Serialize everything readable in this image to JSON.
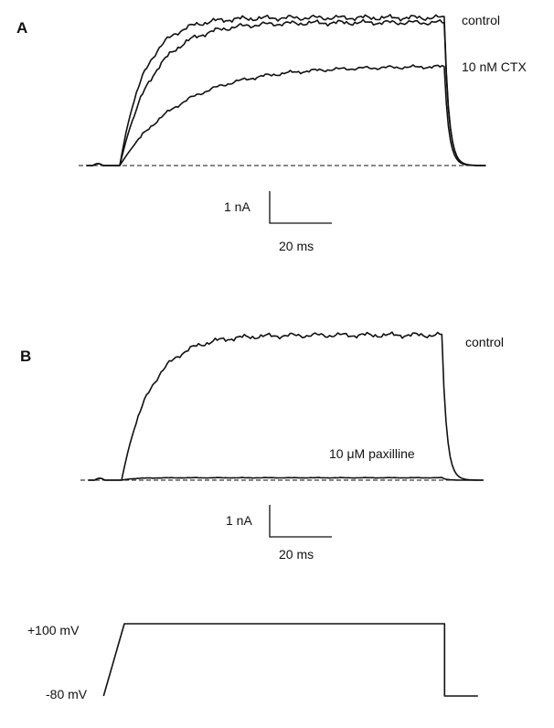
{
  "panels": {
    "a": {
      "letter": "A",
      "labels": {
        "control": "control",
        "toxin": "10 nM CTX"
      },
      "scale": {
        "current": "1 nA",
        "time": "20 ms"
      }
    },
    "b": {
      "letter": "B",
      "labels": {
        "control": "control",
        "toxin": "10 μM paxilline"
      },
      "scale": {
        "current": "1 nA",
        "time": "20 ms"
      }
    }
  },
  "protocol": {
    "high": "+100 mV",
    "low": "-80 mV"
  },
  "chart_data": [
    {
      "type": "line",
      "title": "A",
      "x_unit": "ms",
      "y_unit": "nA",
      "baseline_nA": 0,
      "step_on_ms": 0,
      "step_off_ms": 78,
      "series": [
        {
          "name": "control",
          "peak_nA": 3.05,
          "tau_ms": 6
        },
        {
          "name": "",
          "peak_nA": 2.95,
          "tau_ms": 8
        },
        {
          "name": "10 nM CTX",
          "peak_nA": 2.05,
          "tau_ms": 15
        }
      ]
    },
    {
      "type": "line",
      "title": "B",
      "x_unit": "ms",
      "y_unit": "nA",
      "baseline_nA": 0,
      "step_on_ms": 0,
      "step_off_ms": 77,
      "series": [
        {
          "name": "control",
          "peak_nA": 3.05,
          "tau_ms": 7
        },
        {
          "name": "10 μM paxilline",
          "peak_nA": 0.05,
          "tau_ms": 3
        }
      ]
    },
    {
      "type": "line",
      "title": "",
      "y_unit": "mV",
      "series": [
        {
          "name": "",
          "steps": [
            {
              "t_ms": -5,
              "mV": -80
            },
            {
              "t_ms": 0,
              "mV": 100
            },
            {
              "t_ms": 77,
              "mV": 100
            },
            {
              "t_ms": 77,
              "mV": -80
            },
            {
              "t_ms": 85,
              "mV": -80
            }
          ]
        }
      ]
    }
  ]
}
